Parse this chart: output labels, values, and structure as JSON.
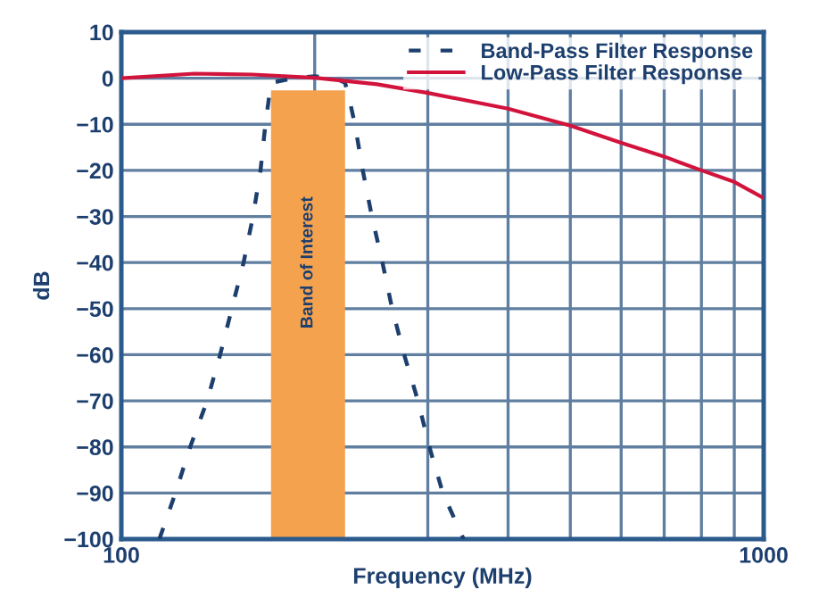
{
  "chart_data": {
    "type": "line",
    "xlabel": "Frequency (MHz)",
    "ylabel": "dB",
    "log": "x",
    "xlim": [
      100,
      1000
    ],
    "ylim": [
      -100,
      10
    ],
    "xticks": [
      100,
      {
        "value": 200,
        "label": null
      },
      {
        "value": 300,
        "label": null
      },
      {
        "value": 400,
        "label": null
      },
      {
        "value": 500,
        "label": null
      },
      {
        "value": 600,
        "label": null
      },
      {
        "value": 700,
        "label": null
      },
      {
        "value": 800,
        "label": null
      },
      {
        "value": 900,
        "label": null
      },
      1000
    ],
    "yticks": [
      10,
      0,
      -10,
      -20,
      -30,
      -40,
      -50,
      -60,
      -70,
      -80,
      -90,
      -100
    ],
    "grid": true,
    "legend": "top right",
    "marker": "none",
    "bands": [
      {
        "axis": "x",
        "from": 171,
        "to": 223,
        "label": "Band of Interest",
        "color": "#f5a24e"
      }
    ],
    "series": [
      {
        "name": "Band-Pass Filter Response",
        "color": "#1d3f6e",
        "line_style": "dashed",
        "x": [
          114.6,
          121.4,
          128,
          136,
          142.5,
          148.6,
          155,
          160.3,
          164.7,
          167.6,
          171,
          185,
          200,
          215,
          223,
          226,
          231,
          237.6,
          245.5,
          255,
          264,
          275.6,
          289.6,
          301.7,
          316.6,
          341
        ],
        "values": [
          -100,
          -90,
          -80,
          -70,
          -60,
          -50,
          -40,
          -30,
          -20,
          -10,
          -1,
          0,
          0.4,
          0,
          -1,
          -4,
          -10,
          -20,
          -30,
          -40,
          -50,
          -60,
          -70,
          -80,
          -90,
          -100
        ]
      },
      {
        "name": "Low-Pass Filter Response",
        "color": "#d2143c",
        "line_style": "solid",
        "x": [
          100,
          130,
          160,
          200,
          250,
          300,
          400,
          500,
          600,
          700,
          800,
          900,
          1000
        ],
        "values": [
          0,
          1,
          0.8,
          0.1,
          -1.3,
          -3.2,
          -6.6,
          -10.3,
          -14,
          -17,
          -20,
          -22.5,
          -26
        ]
      }
    ]
  }
}
